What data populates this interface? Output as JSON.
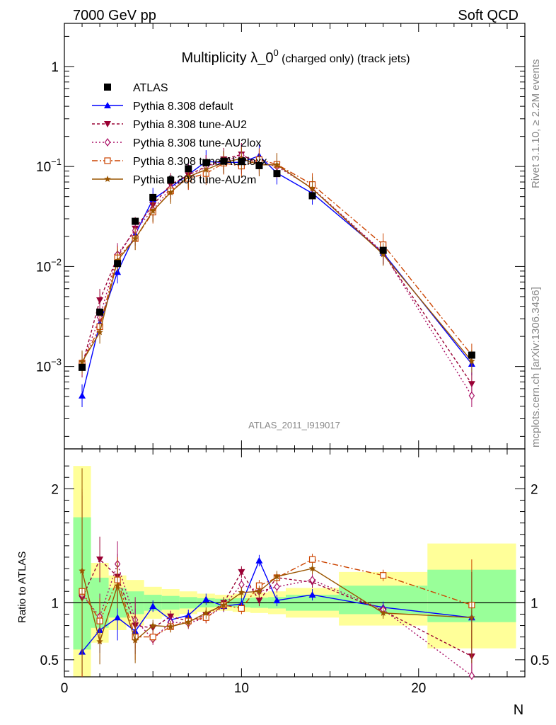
{
  "header": {
    "left": "7000 GeV pp",
    "right": "Soft QCD"
  },
  "side": {
    "upper": "Rivet 3.1.10, ≥ 2.2M events",
    "lower": "mcplots.cern.ch [arXiv:1306.3436]"
  },
  "chart_data": [
    {
      "type": "line",
      "title": "Multiplicity λ_0",
      "title_sup": "0",
      "title_suffix": " (charged only) (track jets)",
      "watermark": "ATLAS_2011_I919017",
      "xlabel": "N",
      "log_y": true,
      "xlim": [
        0,
        26
      ],
      "ylim": [
        0.00015,
        2.7
      ],
      "y_ticks": [
        {
          "v": 0.001,
          "b": "10",
          "e": "−3"
        },
        {
          "v": 0.01,
          "b": "10",
          "e": "−2"
        },
        {
          "v": 0.1,
          "b": "10",
          "e": "−1"
        },
        {
          "v": 1,
          "b": "1",
          "e": ""
        }
      ],
      "legend_position": "top-left",
      "data": {
        "name": "ATLAS",
        "x": [
          1,
          2,
          3,
          4,
          5,
          6,
          7,
          8,
          9,
          10,
          11,
          12,
          14,
          18,
          23
        ],
        "y": [
          0.00098,
          0.0035,
          0.0107,
          0.0283,
          0.049,
          0.073,
          0.095,
          0.109,
          0.113,
          0.112,
          0.102,
          0.085,
          0.051,
          0.0145,
          0.0013
        ]
      },
      "series": [
        {
          "name": "Pythia 8.308 default",
          "color": "#0000ff",
          "marker": "triangle-up",
          "dash": "",
          "x": [
            1,
            2,
            3,
            4,
            5,
            6,
            7,
            8,
            9,
            10,
            11,
            12,
            14,
            18,
            23
          ],
          "y": [
            0.00051,
            0.0027,
            0.0088,
            0.021,
            0.047,
            0.062,
            0.083,
            0.112,
            0.11,
            0.11,
            0.128,
            0.086,
            0.054,
            0.0137,
            0.00106
          ]
        },
        {
          "name": "Pythia 8.308 tune-AU2",
          "color": "#990033",
          "marker": "triangle-down",
          "dash": "4,3",
          "x": [
            1,
            2,
            3,
            4,
            5,
            6,
            7,
            8,
            9,
            10,
            11,
            12,
            14,
            18,
            23
          ],
          "y": [
            0.00101,
            0.0046,
            0.0125,
            0.024,
            0.041,
            0.066,
            0.082,
            0.1,
            0.118,
            0.132,
            0.104,
            0.104,
            0.06,
            0.0135,
            0.00067
          ]
        },
        {
          "name": "Pythia 8.308 tune-AU2lox",
          "color": "#aa1166",
          "marker": "diamond-open",
          "dash": "2,3",
          "x": [
            1,
            2,
            3,
            4,
            5,
            6,
            7,
            8,
            9,
            10,
            11,
            12,
            14,
            18,
            23
          ],
          "y": [
            0.00105,
            0.0031,
            0.0132,
            0.023,
            0.037,
            0.061,
            0.076,
            0.1,
            0.111,
            0.13,
            0.11,
            0.1,
            0.061,
            0.0138,
            0.00051
          ]
        },
        {
          "name": "Pythia 8.308 tune-AU2loxx",
          "color": "#cc4400",
          "marker": "square-open",
          "dash": "8,3,2,3",
          "x": [
            1,
            2,
            3,
            4,
            5,
            6,
            7,
            8,
            9,
            10,
            11,
            12,
            14,
            18,
            23
          ],
          "y": [
            0.00108,
            0.0025,
            0.0122,
            0.019,
            0.035,
            0.057,
            0.076,
            0.085,
            0.108,
            0.101,
            0.117,
            0.105,
            0.066,
            0.0165,
            0.0013
          ]
        },
        {
          "name": "Pythia 8.308 tune-AU2m",
          "color": "#9a5500",
          "marker": "star",
          "dash": "",
          "x": [
            1,
            2,
            3,
            4,
            5,
            6,
            7,
            8,
            9,
            10,
            11,
            12,
            14,
            18,
            23
          ],
          "y": [
            0.00111,
            0.0022,
            0.0115,
            0.019,
            0.036,
            0.055,
            0.079,
            0.093,
            0.11,
            0.12,
            0.104,
            0.104,
            0.06,
            0.0132,
            0.00113
          ]
        }
      ]
    },
    {
      "type": "line",
      "ylabel": "Ratio to ATLAS",
      "xlabel": "N",
      "xlim": [
        0,
        26
      ],
      "ylim": [
        0.35,
        2.35
      ],
      "x_ticks": [
        0,
        10,
        20
      ],
      "y_ticks": [
        0.5,
        1,
        2
      ],
      "reference": 1,
      "bands": [
        {
          "x0": 0.5,
          "x1": 1.5,
          "green": [
            0.59,
            1.75
          ],
          "yellow": [
            0.35,
            2.2
          ]
        },
        {
          "x0": 1.5,
          "x1": 2.5,
          "green": [
            0.78,
            1.22
          ],
          "yellow": [
            0.65,
            1.35
          ]
        },
        {
          "x0": 2.5,
          "x1": 3.5,
          "green": [
            0.87,
            1.13
          ],
          "yellow": [
            0.76,
            1.24
          ]
        },
        {
          "x0": 3.5,
          "x1": 4.5,
          "green": [
            0.9,
            1.1
          ],
          "yellow": [
            0.8,
            1.2
          ]
        },
        {
          "x0": 4.5,
          "x1": 5.5,
          "green": [
            0.93,
            1.07
          ],
          "yellow": [
            0.86,
            1.14
          ]
        },
        {
          "x0": 5.5,
          "x1": 6.5,
          "green": [
            0.94,
            1.06
          ],
          "yellow": [
            0.88,
            1.12
          ]
        },
        {
          "x0": 6.5,
          "x1": 7.5,
          "green": [
            0.95,
            1.05
          ],
          "yellow": [
            0.9,
            1.1
          ]
        },
        {
          "x0": 7.5,
          "x1": 8.5,
          "green": [
            0.96,
            1.04
          ],
          "yellow": [
            0.92,
            1.08
          ]
        },
        {
          "x0": 8.5,
          "x1": 9.5,
          "green": [
            0.965,
            1.035
          ],
          "yellow": [
            0.93,
            1.07
          ]
        },
        {
          "x0": 9.5,
          "x1": 10.5,
          "green": [
            0.96,
            1.04
          ],
          "yellow": [
            0.92,
            1.08
          ]
        },
        {
          "x0": 10.5,
          "x1": 11.5,
          "green": [
            0.955,
            1.045
          ],
          "yellow": [
            0.91,
            1.09
          ]
        },
        {
          "x0": 11.5,
          "x1": 12.5,
          "green": [
            0.95,
            1.05
          ],
          "yellow": [
            0.9,
            1.1
          ]
        },
        {
          "x0": 12.5,
          "x1": 15.5,
          "green": [
            0.93,
            1.07
          ],
          "yellow": [
            0.87,
            1.13
          ]
        },
        {
          "x0": 15.5,
          "x1": 20.5,
          "green": [
            0.9,
            1.15
          ],
          "yellow": [
            0.8,
            1.27
          ]
        },
        {
          "x0": 20.5,
          "x1": 25.5,
          "green": [
            0.83,
            1.29
          ],
          "yellow": [
            0.6,
            1.52
          ]
        }
      ],
      "series": [
        {
          "name": "Pythia 8.308 default",
          "x": [
            1,
            2,
            3,
            4,
            5,
            6,
            7,
            8,
            9,
            10,
            11,
            12,
            14,
            18,
            23
          ],
          "y": [
            0.57,
            0.76,
            0.87,
            0.75,
            0.97,
            0.85,
            0.89,
            1.03,
            0.97,
            0.99,
            1.37,
            1.02,
            1.07,
            0.96,
            0.87
          ]
        },
        {
          "name": "Pythia 8.308 tune-AU2",
          "x": [
            1,
            2,
            3,
            4,
            5,
            6,
            7,
            8,
            9,
            10,
            11,
            12,
            14,
            18,
            23
          ],
          "y": [
            1.04,
            1.38,
            1.23,
            0.8,
            0.78,
            0.88,
            0.84,
            0.89,
            1.0,
            1.27,
            1.02,
            1.22,
            1.18,
            0.93,
            0.53
          ]
        },
        {
          "name": "Pythia 8.308 tune-AU2lox",
          "x": [
            1,
            2,
            3,
            4,
            5,
            6,
            7,
            8,
            9,
            10,
            11,
            12,
            14,
            18,
            23
          ],
          "y": [
            1.07,
            0.88,
            1.34,
            0.85,
            0.68,
            0.83,
            0.82,
            0.87,
            0.97,
            1.16,
            1.1,
            1.14,
            1.2,
            0.94,
            0.36
          ]
        },
        {
          "name": "Pythia 8.308 tune-AU2loxx",
          "x": [
            1,
            2,
            3,
            4,
            5,
            6,
            7,
            8,
            9,
            10,
            11,
            12,
            14,
            18,
            23
          ],
          "y": [
            1.1,
            0.84,
            1.2,
            0.7,
            0.7,
            0.79,
            0.84,
            0.87,
            0.98,
            0.95,
            1.15,
            1.22,
            1.38,
            1.24,
            0.98
          ]
        },
        {
          "name": "Pythia 8.308 tune-AU2m",
          "x": [
            1,
            2,
            3,
            4,
            5,
            6,
            7,
            8,
            9,
            10,
            11,
            12,
            14,
            18,
            23
          ],
          "y": [
            1.28,
            0.66,
            1.15,
            0.67,
            0.8,
            0.79,
            0.83,
            0.91,
            0.98,
            1.09,
            1.1,
            1.23,
            1.3,
            0.91,
            0.87
          ]
        }
      ]
    }
  ]
}
